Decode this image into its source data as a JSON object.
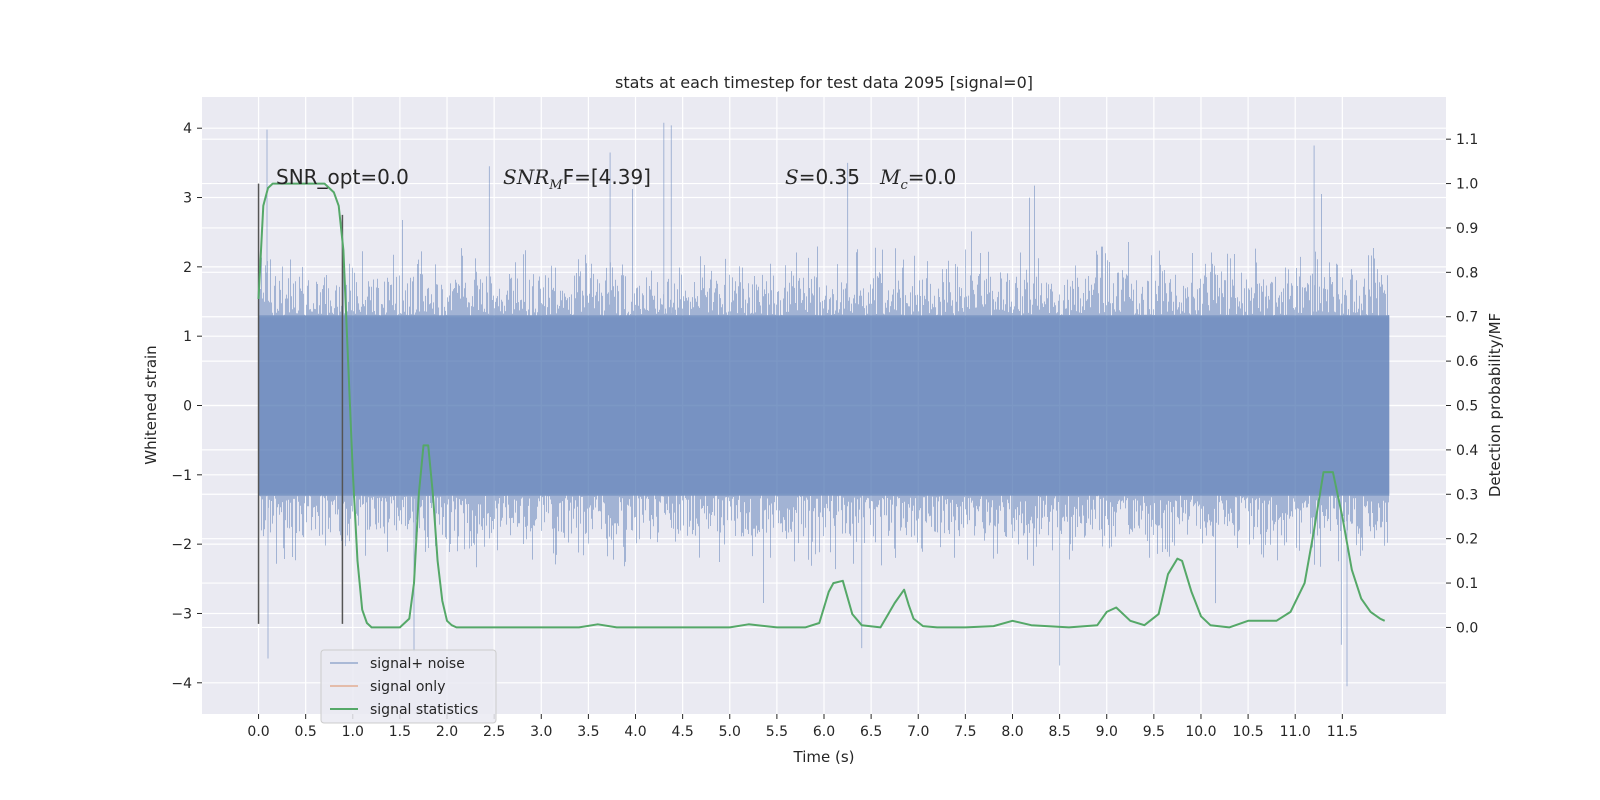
{
  "chart_data": {
    "type": "line",
    "title": "stats at each timestep for test data 2095 [signal=0]",
    "xlabel": "Time (s)",
    "ylabel": "Whitened strain",
    "y2label": "Detection probability/MF",
    "xlim": [
      -0.6,
      12.6
    ],
    "ylim": [
      -4.45,
      4.45
    ],
    "y2lim": [
      -0.195,
      1.195
    ],
    "x_ticks": [
      "0.0",
      "0.5",
      "1.0",
      "1.5",
      "2.0",
      "2.5",
      "3.0",
      "3.5",
      "4.0",
      "4.5",
      "5.0",
      "5.5",
      "6.0",
      "6.5",
      "7.0",
      "7.5",
      "8.0",
      "8.5",
      "9.0",
      "9.5",
      "10.0",
      "10.5",
      "11.0",
      "11.5"
    ],
    "y_ticks": [
      "4",
      "3",
      "2",
      "1",
      "0",
      "−1",
      "−2",
      "−3",
      "−4"
    ],
    "y2_ticks": [
      "1.1",
      "1.0",
      "0.9",
      "0.8",
      "0.7",
      "0.6",
      "0.5",
      "0.4",
      "0.3",
      "0.2",
      "0.1",
      "0.0"
    ],
    "grid": true,
    "legend_position": "lower-left",
    "colors": {
      "background": "#eaeaf2",
      "grid": "#ffffff",
      "signal_noise": "#4c72b0",
      "signal_only": "#dd8452",
      "statistics": "#55a868",
      "marker": "#555555"
    },
    "annotations": {
      "snr_opt": "SNR_opt=0.0",
      "snr_mf_main": "SNR",
      "snr_mf_sub": "M",
      "snr_mf_tail": "F=[4.39]",
      "s_main": "S",
      "s_tail": "=0.35",
      "mc_main": "M",
      "mc_sub": "c",
      "mc_tail": "=0.0"
    },
    "markers": [
      {
        "x": 0.0,
        "y": [
          -3.15,
          3.2
        ]
      },
      {
        "x": 0.89,
        "y": [
          -3.15,
          2.75
        ]
      }
    ],
    "noise": {
      "x_range": [
        0.0,
        12.0
      ],
      "core_amplitude": 1.3,
      "typical_peak": 2.2,
      "notable_peaks": [
        {
          "x": 0.09,
          "y": 3.98
        },
        {
          "x": 0.1,
          "y": -3.65
        },
        {
          "x": 4.3,
          "y": 4.08
        },
        {
          "x": 4.38,
          "y": 4.04
        },
        {
          "x": 11.2,
          "y": 3.75
        },
        {
          "x": 3.73,
          "y": 3.65
        },
        {
          "x": 2.45,
          "y": 3.45
        },
        {
          "x": 6.25,
          "y": 3.5
        },
        {
          "x": 8.5,
          "y": -3.75
        },
        {
          "x": 11.55,
          "y": -4.05
        },
        {
          "x": 11.49,
          "y": -3.45
        },
        {
          "x": 1.65,
          "y": -3.55
        },
        {
          "x": 6.4,
          "y": -3.5
        }
      ]
    },
    "series": [
      {
        "name": "signal+ noise",
        "values": []
      },
      {
        "name": "signal only",
        "values": []
      },
      {
        "name": "signal statistics",
        "x": [
          0.0,
          0.05,
          0.1,
          0.15,
          0.2,
          0.3,
          0.5,
          0.7,
          0.8,
          0.85,
          0.9,
          0.95,
          1.0,
          1.05,
          1.1,
          1.15,
          1.2,
          1.3,
          1.4,
          1.5,
          1.6,
          1.65,
          1.7,
          1.75,
          1.8,
          1.85,
          1.9,
          1.95,
          2.0,
          2.05,
          2.1,
          2.2,
          2.5,
          3.0,
          3.4,
          3.6,
          3.8,
          4.0,
          4.5,
          5.0,
          5.2,
          5.5,
          5.8,
          5.95,
          6.05,
          6.1,
          6.2,
          6.3,
          6.4,
          6.6,
          6.75,
          6.85,
          6.9,
          6.95,
          7.05,
          7.2,
          7.5,
          7.8,
          8.0,
          8.2,
          8.6,
          8.9,
          9.0,
          9.1,
          9.25,
          9.4,
          9.55,
          9.65,
          9.75,
          9.8,
          9.9,
          10.0,
          10.1,
          10.3,
          10.5,
          10.8,
          10.95,
          11.1,
          11.2,
          11.3,
          11.4,
          11.5,
          11.6,
          11.7,
          11.8,
          11.9,
          11.95
        ],
        "values": [
          0.74,
          0.95,
          0.99,
          1.0,
          1.0,
          1.0,
          1.0,
          1.0,
          0.98,
          0.95,
          0.85,
          0.6,
          0.35,
          0.15,
          0.04,
          0.01,
          0.0,
          0.0,
          0.0,
          0.0,
          0.02,
          0.1,
          0.3,
          0.41,
          0.41,
          0.3,
          0.15,
          0.06,
          0.015,
          0.005,
          0.0,
          0.0,
          0.0,
          0.0,
          0.0,
          0.007,
          0.0,
          0.0,
          0.0,
          0.0,
          0.007,
          0.0,
          0.0,
          0.01,
          0.08,
          0.1,
          0.105,
          0.03,
          0.005,
          0.0,
          0.055,
          0.085,
          0.05,
          0.02,
          0.003,
          0.0,
          0.0,
          0.003,
          0.015,
          0.005,
          0.0,
          0.005,
          0.035,
          0.045,
          0.015,
          0.005,
          0.03,
          0.12,
          0.155,
          0.15,
          0.08,
          0.025,
          0.005,
          0.0,
          0.015,
          0.015,
          0.035,
          0.1,
          0.22,
          0.35,
          0.35,
          0.25,
          0.13,
          0.065,
          0.035,
          0.02,
          0.015
        ]
      }
    ],
    "legend": [
      "signal+ noise",
      "signal only",
      "signal statistics"
    ]
  }
}
